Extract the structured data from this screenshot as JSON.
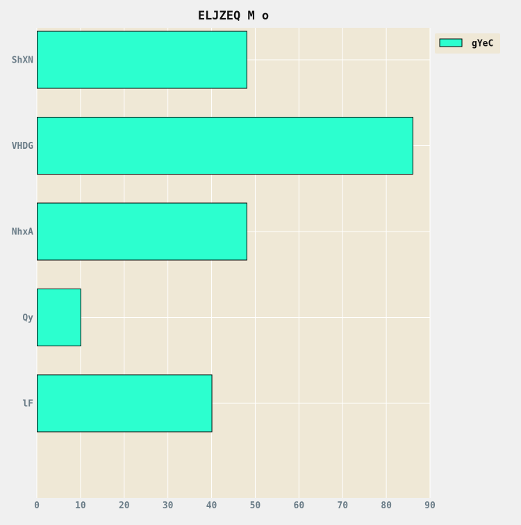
{
  "chart_data": {
    "type": "bar",
    "orientation": "horizontal",
    "title": "ELJZEQ M o",
    "xlabel": "",
    "ylabel": "",
    "categories": [
      "ShXN",
      "VHDG",
      "NhxA",
      "Qy",
      "lF"
    ],
    "series": [
      {
        "name": "gYeC",
        "values": [
          48,
          86,
          48,
          10,
          40
        ]
      }
    ],
    "xlim": [
      0,
      90
    ],
    "xticks": [
      "0",
      "10",
      "20",
      "30",
      "40",
      "50",
      "60",
      "70",
      "80",
      "90"
    ],
    "grid": true,
    "legend_position": "top-right"
  },
  "colors": {
    "page_background": "#f0f0f0",
    "plot_background": "#efe8d6",
    "bar_fill": "#2cffcf",
    "bar_edge": "#000000",
    "grid": "#ffffff",
    "tick_text": "#6b7d88",
    "legend_background": "#efe8d6"
  }
}
